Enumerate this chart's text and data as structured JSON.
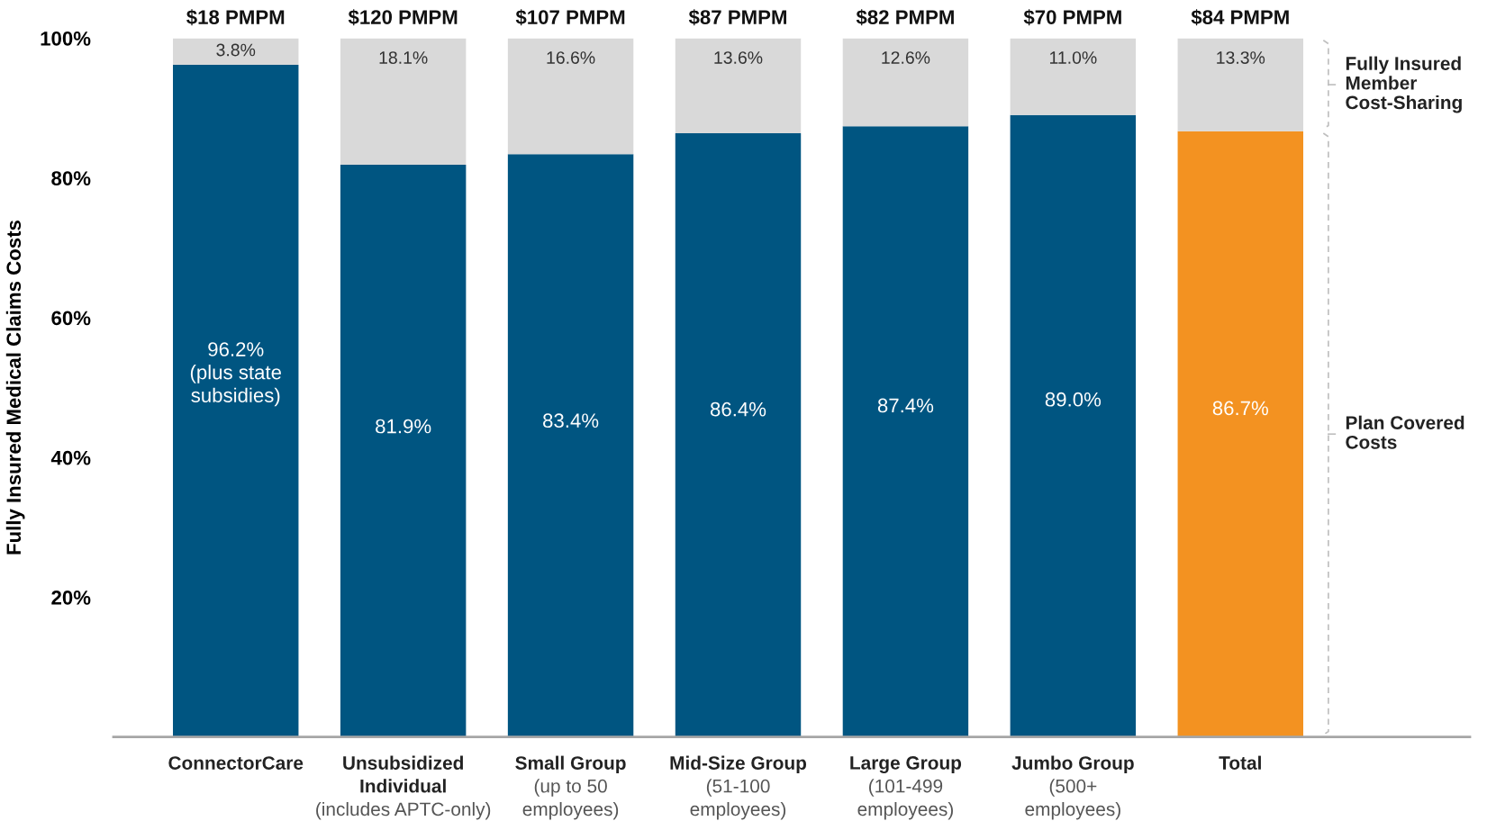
{
  "chart_data": {
    "type": "bar",
    "stacked": true,
    "ylabel": "Fully Insured Medical Claims Costs",
    "categories": [
      "ConnectorCare",
      "Unsubsidized\nIndividual\n(includes APTC-only)",
      "Small Group\n(up to 50\nemployees)",
      "Mid-Size Group\n(51-100\nemployees)",
      "Large Group\n(101-499\nemployees)",
      "Jumbo Group\n(500+\nemployees)",
      "Total"
    ],
    "series": [
      {
        "name": "Plan Covered\nCosts",
        "colors": [
          "#005581",
          "#005581",
          "#005581",
          "#005581",
          "#005581",
          "#005581",
          "#f39221"
        ],
        "values": [
          96.2,
          81.9,
          83.4,
          86.4,
          87.4,
          89.0,
          86.7
        ],
        "value_labels": [
          "96.2%\n(plus state\nsubsidies)",
          "81.9%",
          "83.4%",
          "86.4%",
          "87.4%",
          "89.0%",
          "86.7%"
        ]
      },
      {
        "name": "Fully Insured\nMember\nCost-Sharing",
        "color": "#d9d9d9",
        "values": [
          3.8,
          18.1,
          16.6,
          13.6,
          12.6,
          11.0,
          13.3
        ],
        "value_labels": [
          "3.8%",
          "18.1%",
          "16.6%",
          "13.6%",
          "12.6%",
          "11.0%",
          "13.3%"
        ]
      }
    ],
    "annotations": [
      "$18 PMPM",
      "$120 PMPM",
      "$107 PMPM",
      "$87 PMPM",
      "$82 PMPM",
      "$70 PMPM",
      "$84 PMPM"
    ],
    "ylim": [
      0,
      100
    ],
    "yticks": [
      {
        "value": 20,
        "label": "20%"
      },
      {
        "value": 40,
        "label": "40%"
      },
      {
        "value": 60,
        "label": "60%"
      },
      {
        "value": 80,
        "label": "80%"
      },
      {
        "value": 100,
        "label": "100%"
      }
    ],
    "grid": false,
    "legend": false
  }
}
